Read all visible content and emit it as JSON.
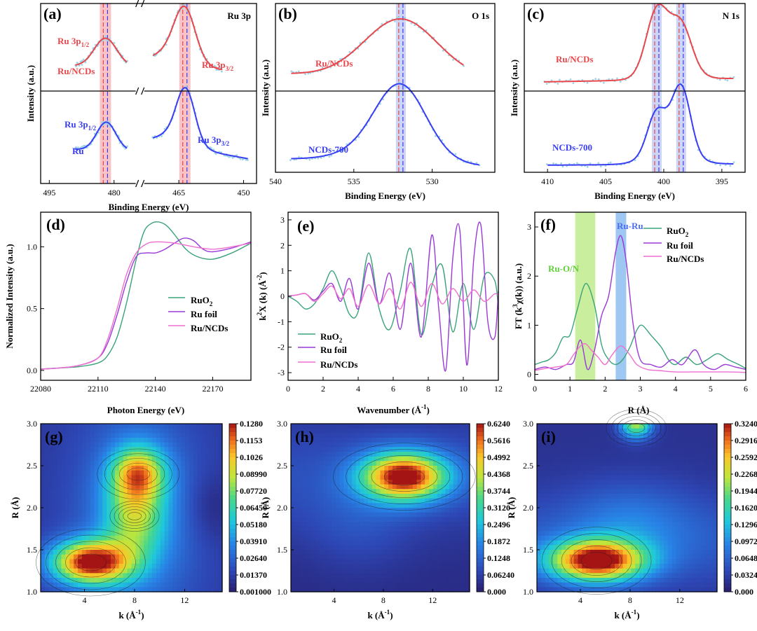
{
  "colors": {
    "red": "#e8474b",
    "blue": "#3a3ef2",
    "cyan": "#9fd4e8",
    "green": "#3aa37a",
    "purple": "#9a3ad8",
    "pink": "#ef6fd0",
    "hl_red": "#f6b9bd",
    "hl_blue": "#c6ccf4",
    "hl_green": "#c9ef9e",
    "hl_blue2": "#9ec8f2"
  },
  "chart_data": [
    {
      "panel": "(a)",
      "type": "line",
      "title": "Ru 3p",
      "xlabel": "Binding Energy (eV)",
      "ylabel": "Intensity (a.u.)",
      "xlim": [
        497,
        447
      ],
      "axis_break": [
        477,
        471
      ],
      "xticks": [
        "495",
        "480",
        "465",
        "450"
      ],
      "reference_lines": [
        482.0,
        463.6
      ],
      "series": [
        {
          "name": "Ru/NCDs",
          "labels": [
            "Ru 3p1/2",
            "Ru 3p3/2"
          ],
          "peaks": [
            {
              "x": 482.0,
              "height": 0.55
            },
            {
              "x": 463.6,
              "height": 0.95
            }
          ]
        },
        {
          "name": "Ru",
          "labels": [
            "Ru 3p1/2",
            "Ru 3p3/2"
          ],
          "peaks": [
            {
              "x": 481.8,
              "height": 0.55
            },
            {
              "x": 463.4,
              "height": 0.85
            }
          ]
        }
      ],
      "text": {
        "upper_label": "Ru/NCDs",
        "lower_label": "Ru",
        "p12": "Ru 3p",
        "p12_sub": "1/2",
        "p32": "Ru 3p",
        "p32_sub": "3/2"
      }
    },
    {
      "panel": "(b)",
      "type": "line",
      "title": "O 1s",
      "xlabel": "Binding Energy (eV)",
      "ylabel": "Intensity (a.u.)",
      "xlim": [
        540,
        526
      ],
      "xticks": [
        "540",
        "535",
        "530"
      ],
      "reference_lines": [
        532.0
      ],
      "series": [
        {
          "name": "Ru/NCDs",
          "peak": 532.0
        },
        {
          "name": "NCDs-700",
          "peak": 532.0
        }
      ]
    },
    {
      "panel": "(c)",
      "type": "line",
      "title": "N 1s",
      "xlabel": "Binding Energy (eV)",
      "ylabel": "Intensity (a.u.)",
      "xlim": [
        412,
        393
      ],
      "xticks": [
        "410",
        "405",
        "400",
        "395"
      ],
      "reference_lines": [
        400.6,
        398.5
      ],
      "series": [
        {
          "name": "Ru/NCDs",
          "peaks": [
            400.6,
            398.5
          ]
        },
        {
          "name": "NCDs-700",
          "peaks": [
            400.6,
            398.5
          ]
        }
      ]
    },
    {
      "panel": "(d)",
      "type": "line",
      "xlabel": "Photon Energy (eV)",
      "ylabel": "Normalized Intensity (a.u.)",
      "xlim": [
        22080,
        22190
      ],
      "ylim": [
        -0.08,
        1.28
      ],
      "xticks": [
        22080,
        22110,
        22140,
        22170
      ],
      "yticks": [
        0.0,
        0.5,
        1.0
      ],
      "legend": [
        "RuO2",
        "Ru foil",
        "Ru/NCDs"
      ],
      "series": [
        {
          "name": "RuO2",
          "x": [
            22080,
            22090,
            22100,
            22110,
            22115,
            22120,
            22125,
            22130,
            22134,
            22138,
            22142,
            22146,
            22150,
            22156,
            22162,
            22170,
            22180,
            22190
          ],
          "y": [
            0.01,
            0.02,
            0.03,
            0.06,
            0.12,
            0.27,
            0.55,
            0.9,
            1.12,
            1.19,
            1.2,
            1.17,
            1.1,
            0.98,
            0.92,
            0.9,
            0.95,
            1.03
          ]
        },
        {
          "name": "Ru foil",
          "x": [
            22080,
            22090,
            22100,
            22110,
            22115,
            22120,
            22125,
            22130,
            22135,
            22140,
            22145,
            22150,
            22155,
            22160,
            22165,
            22170,
            22180,
            22190
          ],
          "y": [
            0.01,
            0.02,
            0.04,
            0.1,
            0.22,
            0.45,
            0.72,
            0.92,
            0.95,
            0.95,
            0.98,
            1.03,
            1.07,
            1.05,
            0.98,
            0.96,
            0.99,
            1.04
          ]
        },
        {
          "name": "Ru/NCDs",
          "x": [
            22080,
            22090,
            22100,
            22110,
            22115,
            22120,
            22125,
            22130,
            22135,
            22140,
            22150,
            22160,
            22170,
            22180,
            22190
          ],
          "y": [
            0.01,
            0.02,
            0.04,
            0.1,
            0.25,
            0.5,
            0.78,
            0.95,
            1.02,
            1.04,
            1.03,
            1.0,
            0.98,
            1.0,
            1.03
          ]
        }
      ]
    },
    {
      "panel": "(e)",
      "type": "line",
      "xlabel": "Wavenumber (Å-1)",
      "ylabel": "k2X (k) (Å-2)",
      "xlim": [
        0,
        12
      ],
      "ylim": [
        -3.3,
        3.3
      ],
      "xticks": [
        0,
        2,
        4,
        6,
        8,
        10,
        12
      ],
      "yticks": [
        -3,
        -2,
        -1,
        0,
        1,
        2,
        3
      ],
      "legend": [
        "RuO2",
        "Ru foil",
        "Ru/NCDs"
      ],
      "series": [
        {
          "name": "RuO2",
          "x": [
            0,
            0.5,
            1,
            1.5,
            2,
            2.5,
            3,
            3.5,
            4,
            4.6,
            5.2,
            5.8,
            6.4,
            7.0,
            7.6,
            8.2,
            8.8,
            9.4,
            10.0,
            10.6,
            11.2,
            11.8,
            12
          ],
          "y": [
            0,
            -0.2,
            -0.5,
            -0.3,
            0.3,
            1.0,
            0.3,
            -0.7,
            -0.6,
            1.7,
            -0.5,
            -1.3,
            0.2,
            1.85,
            -1.5,
            0.4,
            1.2,
            -1.4,
            0.5,
            -1.3,
            0.8,
            0.6,
            -0.5
          ]
        },
        {
          "name": "Ru foil",
          "x": [
            0,
            0.5,
            1,
            1.5,
            2,
            2.5,
            3,
            3.5,
            4,
            4.6,
            5.2,
            5.8,
            6.4,
            7.0,
            7.6,
            8.2,
            8.6,
            9.0,
            9.4,
            9.8,
            10.2,
            10.6,
            11.0,
            11.4,
            11.8,
            12
          ],
          "y": [
            0,
            0.05,
            0.1,
            -0.15,
            0.2,
            0.5,
            -0.2,
            0.7,
            -0.5,
            1.3,
            -0.3,
            0.9,
            -1.3,
            1.3,
            -1.6,
            2.4,
            -0.5,
            -2.9,
            1.5,
            2.6,
            -2.7,
            1.5,
            2.8,
            -1.0,
            -1.6,
            0.2
          ]
        },
        {
          "name": "Ru/NCDs",
          "x": [
            0,
            0.5,
            1,
            1.5,
            2,
            2.5,
            3,
            3.5,
            4,
            4.6,
            5.2,
            5.8,
            6.4,
            7.0,
            7.6,
            8.2,
            8.8,
            9.4,
            10.0,
            10.6,
            11.2,
            11.8,
            12
          ],
          "y": [
            0,
            0.05,
            0.1,
            -0.2,
            0.1,
            0.4,
            -0.1,
            0.3,
            -0.4,
            0.45,
            -0.3,
            0.3,
            -0.5,
            0.55,
            -0.4,
            0.5,
            -0.3,
            0.3,
            -0.2,
            0.25,
            -0.2,
            0.1,
            0.0
          ]
        }
      ]
    },
    {
      "panel": "(f)",
      "type": "line",
      "xlabel": "R (Å)",
      "ylabel": "FT (k3χ(k)) (a.u.)",
      "xlim": [
        0,
        6
      ],
      "ylim": [
        -0.12,
        3.3
      ],
      "xticks": [
        0,
        1,
        2,
        3,
        4,
        5,
        6
      ],
      "yticks": [
        0,
        1,
        2,
        3
      ],
      "legend": [
        "RuO2",
        "Ru foil",
        "Ru/NCDs"
      ],
      "bands": [
        {
          "label": "Ru-O/N",
          "range": [
            1.15,
            1.72
          ]
        },
        {
          "label": "Ru-Ru",
          "range": [
            2.3,
            2.6
          ]
        }
      ],
      "series": [
        {
          "name": "RuO2",
          "x": [
            0,
            0.2,
            0.4,
            0.6,
            0.8,
            1.0,
            1.2,
            1.45,
            1.7,
            1.9,
            2.1,
            2.3,
            2.5,
            2.7,
            2.9,
            3.05,
            3.3,
            3.6,
            3.8,
            4.0,
            4.3,
            4.6,
            4.9,
            5.2,
            5.5,
            5.8,
            6.0
          ],
          "y": [
            0.2,
            0.25,
            0.3,
            0.45,
            0.75,
            0.8,
            1.3,
            1.85,
            1.4,
            0.6,
            0.3,
            0.2,
            0.3,
            0.55,
            0.9,
            1.0,
            0.8,
            0.55,
            0.3,
            0.2,
            0.35,
            0.2,
            0.3,
            0.42,
            0.3,
            0.2,
            0.12
          ]
        },
        {
          "name": "Ru foil",
          "x": [
            0,
            0.3,
            0.6,
            0.9,
            1.1,
            1.3,
            1.5,
            1.7,
            1.9,
            2.1,
            2.3,
            2.45,
            2.6,
            2.8,
            3.0,
            3.3,
            3.6,
            3.9,
            4.2,
            4.55,
            4.8,
            5.1,
            5.4,
            5.7,
            6.0
          ],
          "y": [
            0.1,
            0.15,
            0.1,
            0.2,
            0.25,
            0.7,
            0.1,
            0.5,
            1.2,
            1.6,
            2.5,
            2.82,
            2.3,
            1.0,
            0.3,
            0.2,
            0.15,
            0.3,
            0.2,
            0.5,
            0.2,
            0.1,
            0.2,
            0.15,
            0.1
          ]
        },
        {
          "name": "Ru/NCDs",
          "x": [
            0,
            0.3,
            0.6,
            0.9,
            1.1,
            1.3,
            1.45,
            1.6,
            1.8,
            2.0,
            2.2,
            2.45,
            2.7,
            2.9,
            3.2,
            3.5,
            4.0,
            4.5,
            5.0,
            5.5,
            6.0
          ],
          "y": [
            0.08,
            0.12,
            0.15,
            0.2,
            0.4,
            0.58,
            0.62,
            0.5,
            0.35,
            0.2,
            0.4,
            0.58,
            0.4,
            0.2,
            0.1,
            0.08,
            0.05,
            0.05,
            0.05,
            0.05,
            0.04
          ]
        }
      ]
    },
    {
      "panel": "(g)",
      "type": "heatmap",
      "xlabel": "k (Å-1)",
      "ylabel": "R (Å)",
      "xlim": [
        0.5,
        15
      ],
      "ylim": [
        1.0,
        3.0
      ],
      "xticks": [
        4,
        8,
        12
      ],
      "yticks": [
        1.0,
        1.5,
        2.0,
        2.5,
        3.0
      ],
      "colorbar": [
        "0.1280",
        "0.1153",
        "0.1026",
        "0.08990",
        "0.07720",
        "0.06450",
        "0.05180",
        "0.03910",
        "0.02640",
        "0.01370",
        "0.001000"
      ],
      "max": 0.128,
      "blobs": [
        {
          "k": 4.5,
          "R": 1.35,
          "amp": 1.0
        },
        {
          "k": 8.3,
          "R": 2.4,
          "amp": 0.75
        },
        {
          "k": 8.0,
          "R": 1.9,
          "amp": 0.45
        }
      ]
    },
    {
      "panel": "(h)",
      "type": "heatmap",
      "xlabel": "k (Å-1)",
      "ylabel": "R (Å)",
      "xlim": [
        0.5,
        15
      ],
      "ylim": [
        1.0,
        3.0
      ],
      "xticks": [
        4,
        8,
        12
      ],
      "yticks": [
        1.0,
        1.5,
        2.0,
        2.5,
        3.0
      ],
      "colorbar": [
        "0.6240",
        "0.5616",
        "0.4992",
        "0.4368",
        "0.3744",
        "0.3120",
        "0.2496",
        "0.1872",
        "0.1248",
        "0.06240",
        "0.000"
      ],
      "max": 0.624,
      "blobs": [
        {
          "k": 9.7,
          "R": 2.37,
          "amp": 1.0
        }
      ]
    },
    {
      "panel": "(i)",
      "type": "heatmap",
      "xlabel": "k (Å-1)",
      "ylabel": "R (Å)",
      "xlim": [
        0.5,
        15
      ],
      "ylim": [
        1.0,
        3.0
      ],
      "xticks": [
        4,
        8,
        12
      ],
      "yticks": [
        1.0,
        1.5,
        2.0,
        2.5,
        3.0
      ],
      "colorbar": [
        "0.3240",
        "0.2916",
        "0.2592",
        "0.2268",
        "0.1944",
        "0.1620",
        "0.1296",
        "0.09720",
        "0.06480",
        "0.03240",
        "0.000"
      ],
      "max": 0.324,
      "blobs": [
        {
          "k": 5.3,
          "R": 1.37,
          "amp": 1.0
        },
        {
          "k": 8.5,
          "R": 2.95,
          "amp": 0.55
        }
      ]
    }
  ]
}
